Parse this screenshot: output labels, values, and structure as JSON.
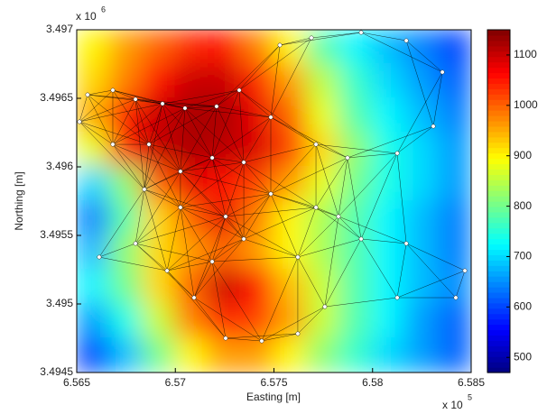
{
  "chart_data": {
    "type": "heatmap",
    "x_label": "Easting [m]",
    "y_label": "Northing [m]",
    "x_exponent": {
      "base": "x 10",
      "power": "5"
    },
    "y_exponent": {
      "base": "x 10",
      "power": "6"
    },
    "colormap": "jet",
    "xlim": [
      656500,
      658500
    ],
    "ylim": [
      3494500,
      3497000
    ],
    "xticks": [
      {
        "value": 656500,
        "label": "6.565"
      },
      {
        "value": 657000,
        "label": "6.57"
      },
      {
        "value": 657500,
        "label": "6.575"
      },
      {
        "value": 658000,
        "label": "6.58"
      },
      {
        "value": 658500,
        "label": "6.585"
      }
    ],
    "yticks": [
      {
        "value": 3494500,
        "label": "3.4945"
      },
      {
        "value": 3495000,
        "label": "3.495"
      },
      {
        "value": 3495500,
        "label": "3.4955"
      },
      {
        "value": 3496000,
        "label": "3.496"
      },
      {
        "value": 3496500,
        "label": "3.4965"
      },
      {
        "value": 3497000,
        "label": "3.497"
      }
    ],
    "clim": [
      470,
      1150
    ],
    "cticks": [
      500,
      600,
      700,
      800,
      900,
      1000,
      1100
    ],
    "z": [
      [
        900,
        960,
        1000,
        1040,
        1050,
        980,
        900,
        780,
        720,
        680,
        640,
        600
      ],
      [
        920,
        980,
        1060,
        1100,
        1100,
        1040,
        960,
        850,
        760,
        700,
        660,
        620
      ],
      [
        950,
        1050,
        1100,
        1120,
        1120,
        1080,
        1000,
        880,
        780,
        720,
        680,
        640
      ],
      [
        880,
        1040,
        1100,
        1120,
        1110,
        1090,
        1020,
        920,
        820,
        740,
        700,
        660
      ],
      [
        700,
        820,
        1000,
        1080,
        1060,
        1020,
        960,
        880,
        800,
        740,
        700,
        660
      ],
      [
        640,
        780,
        920,
        1000,
        1080,
        980,
        900,
        840,
        780,
        720,
        680,
        640
      ],
      [
        680,
        820,
        920,
        960,
        1000,
        960,
        900,
        840,
        780,
        720,
        680,
        640
      ],
      [
        720,
        800,
        920,
        1000,
        1100,
        1060,
        940,
        860,
        780,
        720,
        680,
        650
      ],
      [
        660,
        740,
        860,
        980,
        1040,
        1020,
        960,
        860,
        780,
        720,
        660,
        620
      ],
      [
        600,
        680,
        800,
        900,
        960,
        960,
        900,
        820,
        760,
        700,
        660,
        620
      ]
    ],
    "nodes": {
      "x": [
        656514,
        656555,
        656683,
        656798,
        656935,
        657049,
        657209,
        657324,
        657530,
        657690,
        657942,
        658171,
        658354,
        658308,
        658125,
        657873,
        657713,
        657484,
        656683,
        656866,
        657026,
        657187,
        657347,
        656843,
        657026,
        657255,
        657484,
        657713,
        657827,
        656614,
        656798,
        656958,
        657187,
        657347,
        657621,
        657942,
        658171,
        658468,
        658422,
        658125,
        657095,
        657255,
        657438,
        657621,
        657758
      ],
      "y": [
        3496329,
        3496526,
        3496559,
        3496493,
        3496461,
        3496428,
        3496441,
        3496559,
        3496888,
        3496941,
        3496980,
        3496921,
        3496691,
        3496296,
        3496099,
        3496066,
        3496164,
        3496362,
        3496164,
        3496164,
        3495967,
        3496066,
        3496033,
        3495836,
        3495704,
        3495638,
        3495803,
        3495704,
        3495638,
        3495342,
        3495441,
        3495243,
        3495309,
        3495474,
        3495342,
        3495474,
        3495441,
        3495243,
        3495046,
        3495046,
        3495046,
        3494750,
        3494730,
        3494783,
        3494980
      ]
    }
  }
}
